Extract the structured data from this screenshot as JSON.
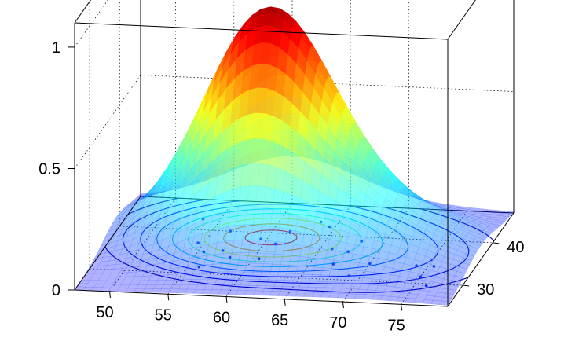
{
  "chart_data": {
    "type": "surface3d",
    "title": "",
    "xlabel": "",
    "ylabel": "",
    "zlabel": "",
    "xlim": [
      47,
      79
    ],
    "ylim": [
      25,
      47
    ],
    "zlim": [
      0,
      1.1
    ],
    "x_ticks": [
      "50",
      "55",
      "60",
      "65",
      "70",
      "75"
    ],
    "y_ticks": [
      "30",
      "40"
    ],
    "z_ticks": [
      "0",
      "0.5",
      "1"
    ],
    "grid": true,
    "box": true,
    "colormap": "jet",
    "surface_alpha": 0.55,
    "peak": {
      "x": 60,
      "y": 39,
      "z": 1.0
    },
    "surface_modes": [
      {
        "x": 60,
        "y": 39,
        "sx": 5.5,
        "sy": 4.5,
        "amp": 0.93
      },
      {
        "x": 71,
        "y": 36,
        "sx": 5.5,
        "sy": 5,
        "amp": 0.16
      }
    ],
    "contour_levels": [
      0.04,
      0.08,
      0.14,
      0.22,
      0.32,
      0.44,
      0.58,
      0.74,
      0.88
    ],
    "points_color": "#1f3cff",
    "points": [
      {
        "x": 53.5,
        "y": 42.5
      },
      {
        "x": 54.5,
        "y": 37
      },
      {
        "x": 55.5,
        "y": 35
      },
      {
        "x": 56,
        "y": 31.5
      },
      {
        "x": 56.5,
        "y": 40
      },
      {
        "x": 57,
        "y": 35.5
      },
      {
        "x": 58,
        "y": 34
      },
      {
        "x": 59.5,
        "y": 38.5
      },
      {
        "x": 60.5,
        "y": 34
      },
      {
        "x": 61,
        "y": 37.5
      },
      {
        "x": 61.5,
        "y": 40.5
      },
      {
        "x": 63.5,
        "y": 43
      },
      {
        "x": 64.5,
        "y": 42
      },
      {
        "x": 66,
        "y": 37
      },
      {
        "x": 67,
        "y": 33.5
      },
      {
        "x": 67.5,
        "y": 36.5
      },
      {
        "x": 68,
        "y": 39
      },
      {
        "x": 69,
        "y": 31
      },
      {
        "x": 70,
        "y": 34
      },
      {
        "x": 74,
        "y": 34
      },
      {
        "x": 75,
        "y": 31.5
      },
      {
        "x": 75.5,
        "y": 34
      },
      {
        "x": 76,
        "y": 29.5
      }
    ]
  }
}
